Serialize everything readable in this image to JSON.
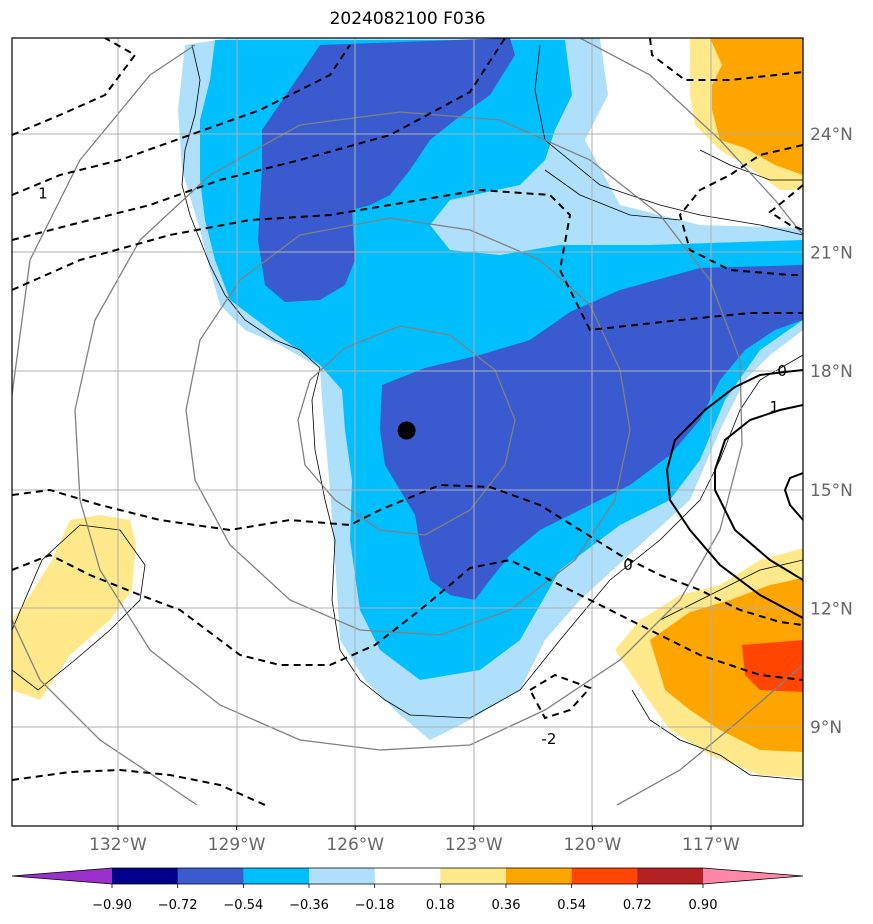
{
  "title": "2024082100 F036",
  "chart_data": {
    "type": "contour_map",
    "lon_range": [
      -135,
      -115
    ],
    "lat_range": [
      6.5,
      26.5
    ],
    "lon_ticks": [
      {
        "value": -132,
        "label": "132°W"
      },
      {
        "value": -129,
        "label": "129°W"
      },
      {
        "value": -126,
        "label": "126°W"
      },
      {
        "value": -123,
        "label": "123°W"
      },
      {
        "value": -120,
        "label": "120°W"
      },
      {
        "value": -117,
        "label": "117°W"
      }
    ],
    "lat_ticks": [
      {
        "value": 9,
        "label": "9°N"
      },
      {
        "value": 12,
        "label": "12°N"
      },
      {
        "value": 15,
        "label": "15°N"
      },
      {
        "value": 18,
        "label": "18°N"
      },
      {
        "value": 21,
        "label": "21°N"
      },
      {
        "value": 24,
        "label": "24°N"
      }
    ],
    "grid": true,
    "storm_center": {
      "lon": -124.7,
      "lat": 16.5
    },
    "colorbar": {
      "orientation": "horizontal",
      "extend": "both",
      "levels": [
        "−0.90",
        "−0.72",
        "−0.54",
        "−0.36",
        "−0.18",
        "0.18",
        "0.36",
        "0.54",
        "0.72",
        "0.90"
      ],
      "colors": [
        "#9932cc",
        "#00008b",
        "#3a5bcf",
        "#00bfff",
        "#afe0fb",
        "#ffffff",
        "#ffe98a",
        "#ffa500",
        "#ff4500",
        "#b22222",
        "#ff88aa"
      ]
    },
    "contour_labels": [
      {
        "text": "1",
        "lon": -133.9,
        "lat": 22.5
      },
      {
        "text": "0",
        "lon": -119.1,
        "lat": 13.1
      },
      {
        "text": "-2",
        "lon": -121.1,
        "lat": 8.7
      },
      {
        "text": "0",
        "lon": -115.2,
        "lat": 18.0
      },
      {
        "text": "1",
        "lon": -115.4,
        "lat": 17.1
      }
    ]
  }
}
